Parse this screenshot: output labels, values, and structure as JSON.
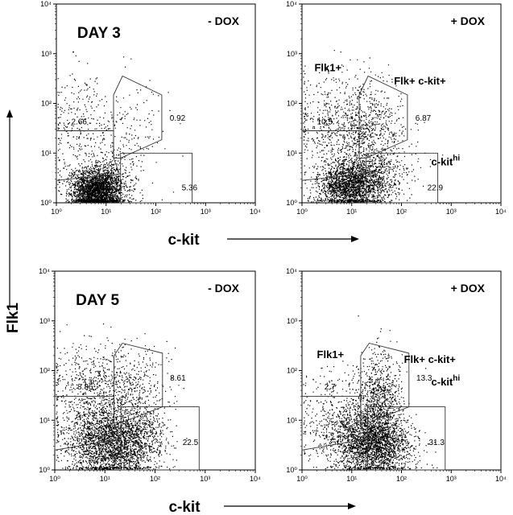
{
  "figure": {
    "x_axis_label": "c-kit",
    "y_axis_label": "Flk1"
  },
  "chart_data": [
    {
      "type": "scatter",
      "panel": "day3-minus-dox",
      "title": "DAY 3",
      "condition": "- DOX",
      "xscale": "log",
      "yscale": "log",
      "xlim": [
        1,
        10000
      ],
      "ylim": [
        1,
        10000
      ],
      "x_ticks": [
        "10⁰",
        "10¹",
        "10²",
        "10³",
        "10⁴"
      ],
      "y_ticks": [
        "10⁰",
        "10¹",
        "10²",
        "10³",
        "10⁴"
      ],
      "gates": [
        {
          "name": "",
          "percent": "2.66"
        },
        {
          "name": "",
          "percent": "0.92"
        },
        {
          "name": "",
          "percent": "5.36"
        }
      ],
      "density": {
        "n": 3200,
        "mode": "day3-minus"
      }
    },
    {
      "type": "scatter",
      "panel": "day3-plus-dox",
      "title": "",
      "condition": "+ DOX",
      "xscale": "log",
      "yscale": "log",
      "xlim": [
        1,
        10000
      ],
      "ylim": [
        1,
        10000
      ],
      "x_ticks": [
        "10⁰",
        "10¹",
        "10²",
        "10³",
        "10⁴"
      ],
      "y_ticks": [
        "10⁰",
        "10¹",
        "10²",
        "10³",
        "10⁴"
      ],
      "gates": [
        {
          "name": "Flk1+",
          "percent": "10.5"
        },
        {
          "name": "Flk+ c-kit+",
          "percent": "6.87"
        },
        {
          "name": "c-kit",
          "superscript": "hi",
          "percent": "22.9"
        }
      ],
      "density": {
        "n": 3600,
        "mode": "day3-plus"
      }
    },
    {
      "type": "scatter",
      "panel": "day5-minus-dox",
      "title": "DAY 5",
      "condition": "- DOX",
      "xscale": "log",
      "yscale": "log",
      "xlim": [
        1,
        10000
      ],
      "ylim": [
        1,
        10000
      ],
      "x_ticks": [
        "10⁰",
        "10¹",
        "10²",
        "10³",
        "10⁴"
      ],
      "y_ticks": [
        "10⁰",
        "10¹",
        "10²",
        "10³",
        "10⁴"
      ],
      "gates": [
        {
          "name": "",
          "percent": "8.86"
        },
        {
          "name": "",
          "percent": "8.61"
        },
        {
          "name": "",
          "percent": "22.5"
        }
      ],
      "density": {
        "n": 3800,
        "mode": "day5-minus"
      }
    },
    {
      "type": "scatter",
      "panel": "day5-plus-dox",
      "title": "",
      "condition": "+ DOX",
      "xscale": "log",
      "yscale": "log",
      "xlim": [
        1,
        10000
      ],
      "ylim": [
        1,
        10000
      ],
      "x_ticks": [
        "10⁰",
        "10¹",
        "10²",
        "10³",
        "10⁴"
      ],
      "y_ticks": [
        "10⁰",
        "10¹",
        "10²",
        "10³",
        "10⁴"
      ],
      "gates": [
        {
          "name": "Flk1+",
          "percent": "2.7"
        },
        {
          "name": "Flk+ c-kit+",
          "percent": "13.3"
        },
        {
          "name": "c-kit",
          "superscript": "hi",
          "percent": "31.3"
        }
      ],
      "density": {
        "n": 3800,
        "mode": "day5-plus"
      }
    }
  ]
}
